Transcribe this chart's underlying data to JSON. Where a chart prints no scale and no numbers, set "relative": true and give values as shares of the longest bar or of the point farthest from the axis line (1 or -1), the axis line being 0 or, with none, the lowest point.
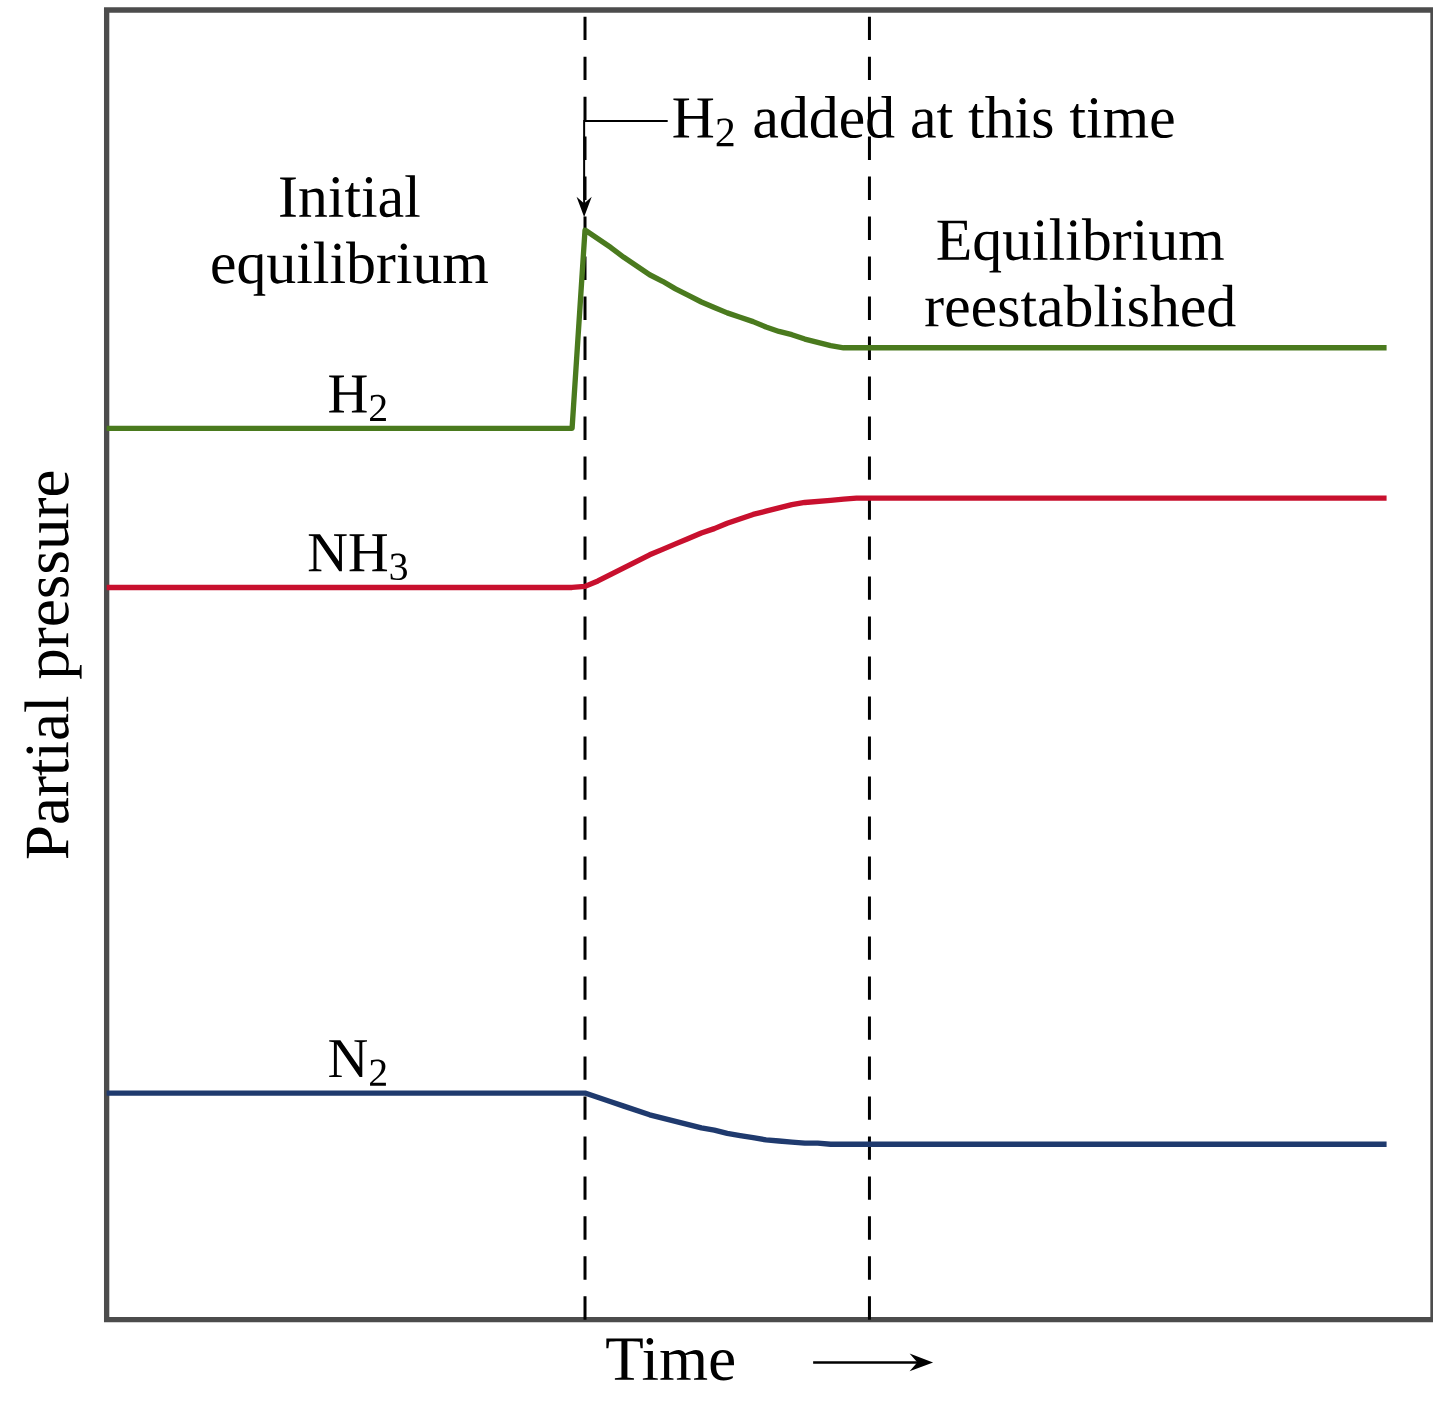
{
  "chart_data": {
    "type": "line",
    "relative": true,
    "xlabel": "Time",
    "ylabel": "Partial pressure",
    "legend": false,
    "categories": [
      null,
      null,
      null,
      null,
      null,
      null,
      null,
      null,
      null,
      null,
      null,
      null,
      null,
      null,
      null,
      null,
      null,
      null,
      null,
      null,
      null,
      null,
      null,
      null,
      null,
      null,
      null,
      null,
      null,
      null,
      null,
      null,
      null,
      null,
      null,
      null,
      null,
      null,
      null,
      null,
      null,
      null,
      null,
      null,
      null,
      null,
      null,
      null,
      null,
      null,
      null,
      null,
      null,
      null,
      null,
      null,
      null,
      null,
      null,
      null,
      null,
      null,
      null,
      null,
      null,
      null,
      null,
      null,
      null,
      null,
      null,
      null,
      null,
      null,
      null,
      null,
      null,
      null,
      null,
      null,
      null,
      null,
      null,
      null,
      null,
      null,
      null,
      null,
      null,
      null,
      null,
      null,
      null,
      null,
      null,
      null,
      null,
      null,
      null,
      null
    ],
    "series": [
      {
        "name": "H$_{2}$",
        "color": "#4a7a1e",
        "values": [
          0.818,
          0.818,
          0.818,
          0.818,
          0.818,
          0.818,
          0.818,
          0.818,
          0.818,
          0.818,
          0.818,
          0.818,
          0.818,
          0.818,
          0.818,
          0.818,
          0.818,
          0.818,
          0.818,
          0.818,
          0.818,
          0.818,
          0.818,
          0.818,
          0.818,
          0.818,
          0.818,
          0.818,
          0.818,
          0.818,
          0.818,
          0.818,
          0.818,
          0.818,
          0.818,
          0.818,
          0.818,
          1,
          0.992,
          0.984,
          0.975,
          0.967,
          0.959,
          0.953,
          0.946,
          0.94,
          0.934,
          0.929,
          0.924,
          0.92,
          0.916,
          0.911,
          0.907,
          0.904,
          0.9,
          0.897,
          0.894,
          0.892,
          0.892,
          0.892,
          0.892,
          0.892,
          0.892,
          0.892,
          0.892,
          0.892,
          0.892,
          0.892,
          0.892,
          0.892,
          0.892,
          0.892,
          0.892,
          0.892,
          0.892,
          0.892,
          0.892,
          0.892,
          0.892,
          0.892,
          0.892,
          0.892,
          0.892,
          0.892,
          0.892,
          0.892,
          0.892,
          0.892,
          0.892,
          0.892,
          0.892,
          0.892,
          0.892,
          0.892,
          0.892,
          0.892,
          0.892,
          0.892,
          0.892,
          0.892
        ]
      },
      {
        "name": "NH$_{3}$",
        "color": "#c8102e",
        "values": [
          0.672,
          0.672,
          0.672,
          0.672,
          0.672,
          0.672,
          0.672,
          0.672,
          0.672,
          0.672,
          0.672,
          0.672,
          0.672,
          0.672,
          0.672,
          0.672,
          0.672,
          0.672,
          0.672,
          0.672,
          0.672,
          0.672,
          0.672,
          0.672,
          0.672,
          0.672,
          0.672,
          0.672,
          0.672,
          0.672,
          0.672,
          0.672,
          0.672,
          0.672,
          0.672,
          0.672,
          0.672,
          0.673,
          0.678,
          0.684,
          0.69,
          0.696,
          0.702,
          0.707,
          0.712,
          0.717,
          0.722,
          0.726,
          0.731,
          0.735,
          0.739,
          0.742,
          0.745,
          0.748,
          0.75,
          0.751,
          0.752,
          0.753,
          0.754,
          0.754,
          0.754,
          0.754,
          0.754,
          0.754,
          0.754,
          0.754,
          0.754,
          0.754,
          0.754,
          0.754,
          0.754,
          0.754,
          0.754,
          0.754,
          0.754,
          0.754,
          0.754,
          0.754,
          0.754,
          0.754,
          0.754,
          0.754,
          0.754,
          0.754,
          0.754,
          0.754,
          0.754,
          0.754,
          0.754,
          0.754,
          0.754,
          0.754,
          0.754,
          0.754,
          0.754,
          0.754,
          0.754,
          0.754,
          0.754,
          0.754
        ]
      },
      {
        "name": "N$_{2}$",
        "color": "#1f3a6e",
        "values": [
          0.208,
          0.208,
          0.208,
          0.208,
          0.208,
          0.208,
          0.208,
          0.208,
          0.208,
          0.208,
          0.208,
          0.208,
          0.208,
          0.208,
          0.208,
          0.208,
          0.208,
          0.208,
          0.208,
          0.208,
          0.208,
          0.208,
          0.208,
          0.208,
          0.208,
          0.208,
          0.208,
          0.208,
          0.208,
          0.208,
          0.208,
          0.208,
          0.208,
          0.208,
          0.208,
          0.208,
          0.208,
          0.208,
          0.204,
          0.2,
          0.196,
          0.192,
          0.188,
          0.185,
          0.182,
          0.179,
          0.176,
          0.174,
          0.171,
          0.169,
          0.167,
          0.165,
          0.164,
          0.163,
          0.162,
          0.162,
          0.161,
          0.161,
          0.161,
          0.161,
          0.161,
          0.161,
          0.161,
          0.161,
          0.161,
          0.161,
          0.161,
          0.161,
          0.161,
          0.161,
          0.161,
          0.161,
          0.161,
          0.161,
          0.161,
          0.161,
          0.161,
          0.161,
          0.161,
          0.161,
          0.161,
          0.161,
          0.161,
          0.161,
          0.161,
          0.161,
          0.161,
          0.161,
          0.161,
          0.161,
          0.161,
          0.161,
          0.161,
          0.161,
          0.161,
          0.161,
          0.161,
          0.161,
          0.161,
          0.161
        ]
      }
    ],
    "annotations": [
      "Initial equilibrium",
      "H$_{2}$ added at this time",
      "Equilibrium reestablished"
    ]
  }
}
